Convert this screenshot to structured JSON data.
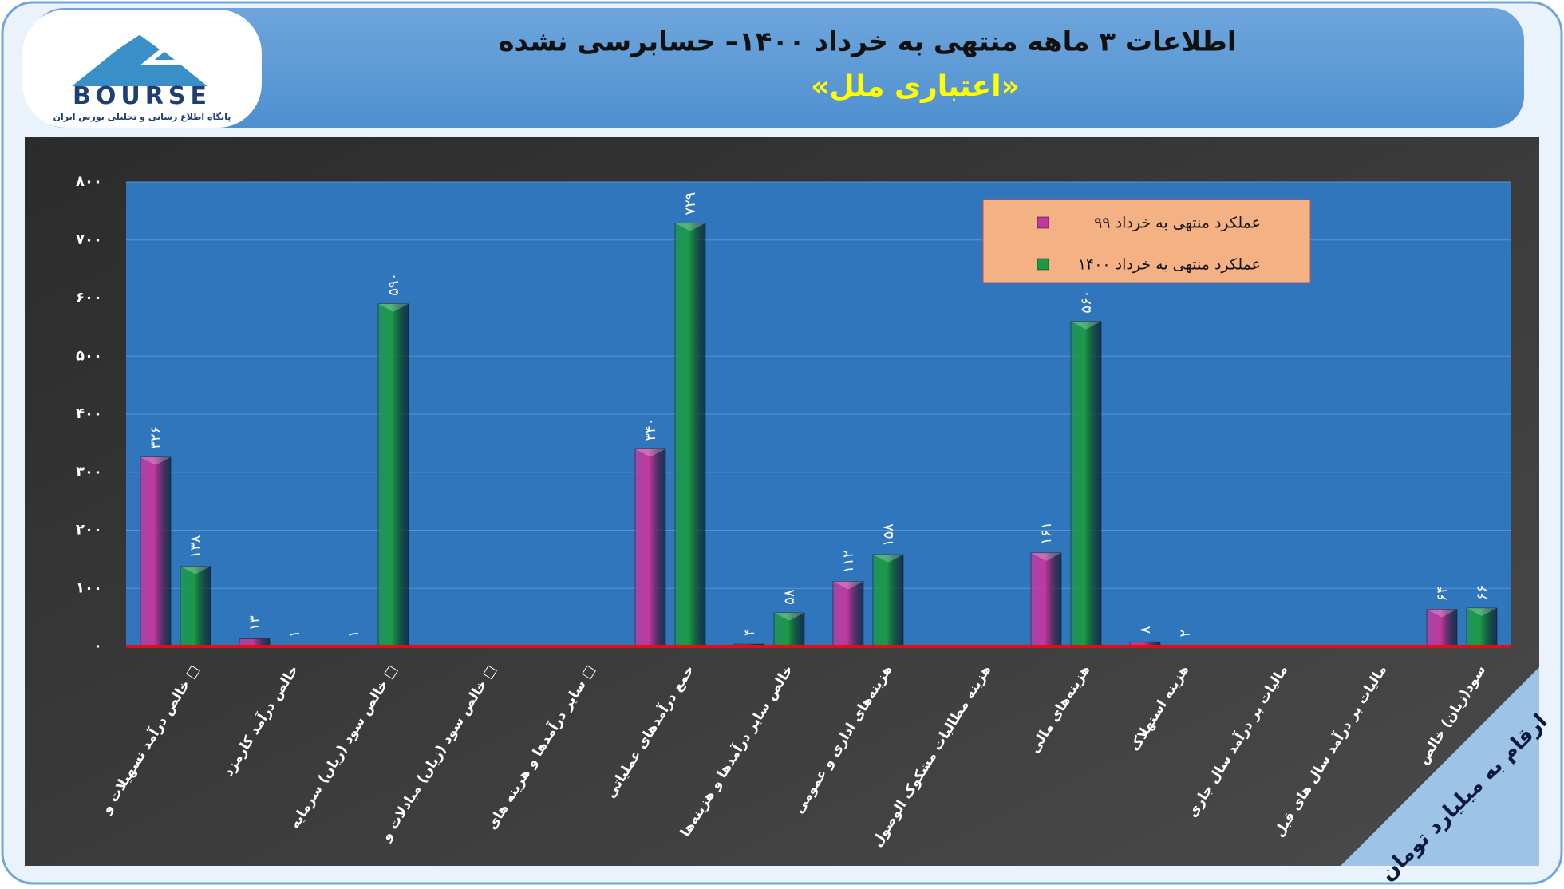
{
  "logo": {
    "brand": "BOURSE",
    "tagline": "پایگاه اطلاع رسانی و تحلیلی بورس ایران"
  },
  "chart_data": {
    "type": "bar",
    "title": "اطلاعات ۳ ماهه منتهی به خرداد ۱۴۰۰– حسابرسی نشده",
    "subtitle": "«اعتباری ملل»",
    "annotation": "ارقام به میلیارد تومان",
    "categories": [
      "خالص درآمد تسهیلات و □",
      "خالص درآمد کارمزد",
      "خالص سود (زیان) سرمایه □",
      "خالص سود (زیان) مبادلات و □",
      "سایر درآمدها و هزینه های □",
      "جمع درآمدهای عملیاتی",
      "خالص سایر درآمدها و هزینه‌ها",
      "هزینه‌های اداری و عمومی",
      "هزینه مطالبات مشکوک الوصول",
      "هزینه‌های مالی",
      "هزینه استهلاک",
      "مالیات بر درآمد سال جاری",
      "مالیات بر درآمد سال های قبل",
      "سود(زیان) خالص"
    ],
    "series": [
      {
        "name": "عملکرد منتهی به خرداد ۹۹",
        "color": "#c2389f",
        "values": [
          326,
          13,
          1,
          null,
          null,
          340,
          4,
          112,
          null,
          161,
          8,
          null,
          null,
          64
        ],
        "value_labels": [
          "۳۲۶",
          "۱۳",
          "۱",
          null,
          null,
          "۳۴۰",
          "۴",
          "۱۱۲",
          null,
          "۱۶۱",
          "۸",
          null,
          null,
          "۶۴"
        ]
      },
      {
        "name": "عملکرد منتهی به خرداد ۱۴۰۰",
        "color": "#1b9a46",
        "values": [
          138,
          1,
          590,
          null,
          null,
          729,
          58,
          158,
          null,
          560,
          2,
          null,
          null,
          66
        ],
        "value_labels": [
          "۱۳۸",
          "۱",
          "۵۹۰",
          null,
          null,
          "۷۲۹",
          "۵۸",
          "۱۵۸",
          null,
          "۵۶۰",
          "۲",
          null,
          null,
          "۶۶"
        ]
      }
    ],
    "ylim": [
      0,
      800
    ],
    "yticks": [
      {
        "value": 0,
        "label": "۰"
      },
      {
        "value": 100,
        "label": "۱۰۰"
      },
      {
        "value": 200,
        "label": "۲۰۰"
      },
      {
        "value": 300,
        "label": "۳۰۰"
      },
      {
        "value": 400,
        "label": "۴۰۰"
      },
      {
        "value": 500,
        "label": "۵۰۰"
      },
      {
        "value": 600,
        "label": "۶۰۰"
      },
      {
        "value": 700,
        "label": "۷۰۰"
      },
      {
        "value": 800,
        "label": "۸۰۰"
      }
    ],
    "grid": true
  }
}
